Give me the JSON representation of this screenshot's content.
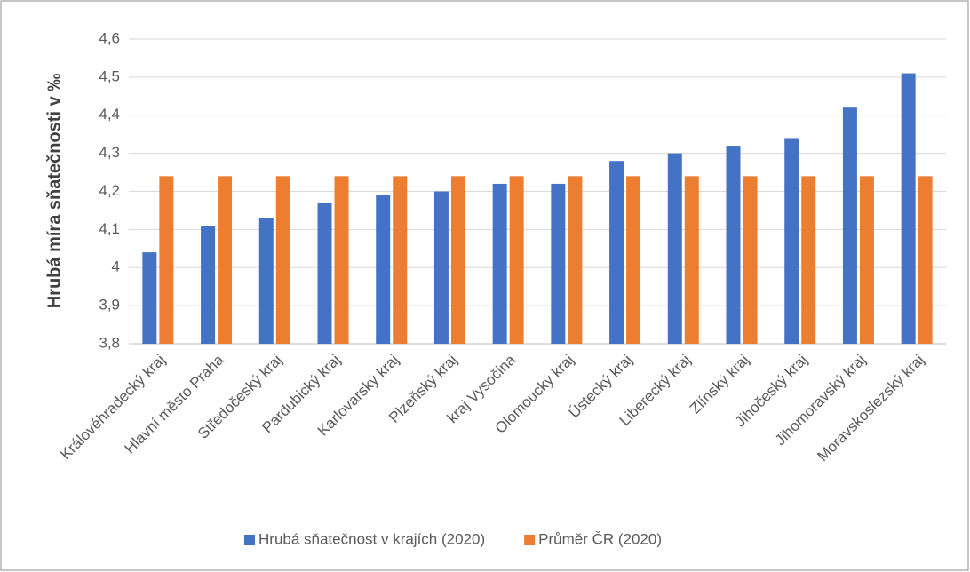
{
  "chart_data": {
    "type": "bar",
    "y_label": "Hrubá míra sňatečnosti v ‰",
    "categories": [
      "Královéhradecký kraj",
      "Hlavní město Praha",
      "Středočeský kraj",
      "Pardubický kraj",
      "Karlovarský kraj",
      "Plzeňský kraj",
      "kraj Vysočina",
      "Olomoucký kraj",
      "Ústecký kraj",
      "Liberecký kraj",
      "Zlínský kraj",
      "Jihočeský kraj",
      "Jihomoravský kraj",
      "Moravskoslezský kraj"
    ],
    "series": [
      {
        "name": "Hrubá sňatečnost v krajích (2020)",
        "color": "#4472c4",
        "values": [
          4.04,
          4.11,
          4.13,
          4.17,
          4.19,
          4.2,
          4.22,
          4.22,
          4.28,
          4.3,
          4.32,
          4.34,
          4.42,
          4.51
        ]
      },
      {
        "name": "Průměr ČR (2020)",
        "color": "#ed7d31",
        "values": [
          4.24,
          4.24,
          4.24,
          4.24,
          4.24,
          4.24,
          4.24,
          4.24,
          4.24,
          4.24,
          4.24,
          4.24,
          4.24,
          4.24
        ]
      }
    ],
    "ylim": [
      3.8,
      4.6
    ],
    "yticks": [
      {
        "value": 3.8,
        "label": "3,8"
      },
      {
        "value": 3.9,
        "label": "3,9"
      },
      4,
      {
        "value": 4.1,
        "label": "4,1"
      },
      {
        "value": 4.2,
        "label": "4,2"
      },
      {
        "value": 4.3,
        "label": "4,3"
      },
      {
        "value": 4.4,
        "label": "4,4"
      },
      {
        "value": 4.5,
        "label": "4,5"
      },
      {
        "value": 4.6,
        "label": "4,6"
      }
    ],
    "grid": true,
    "legend": "bottom"
  }
}
